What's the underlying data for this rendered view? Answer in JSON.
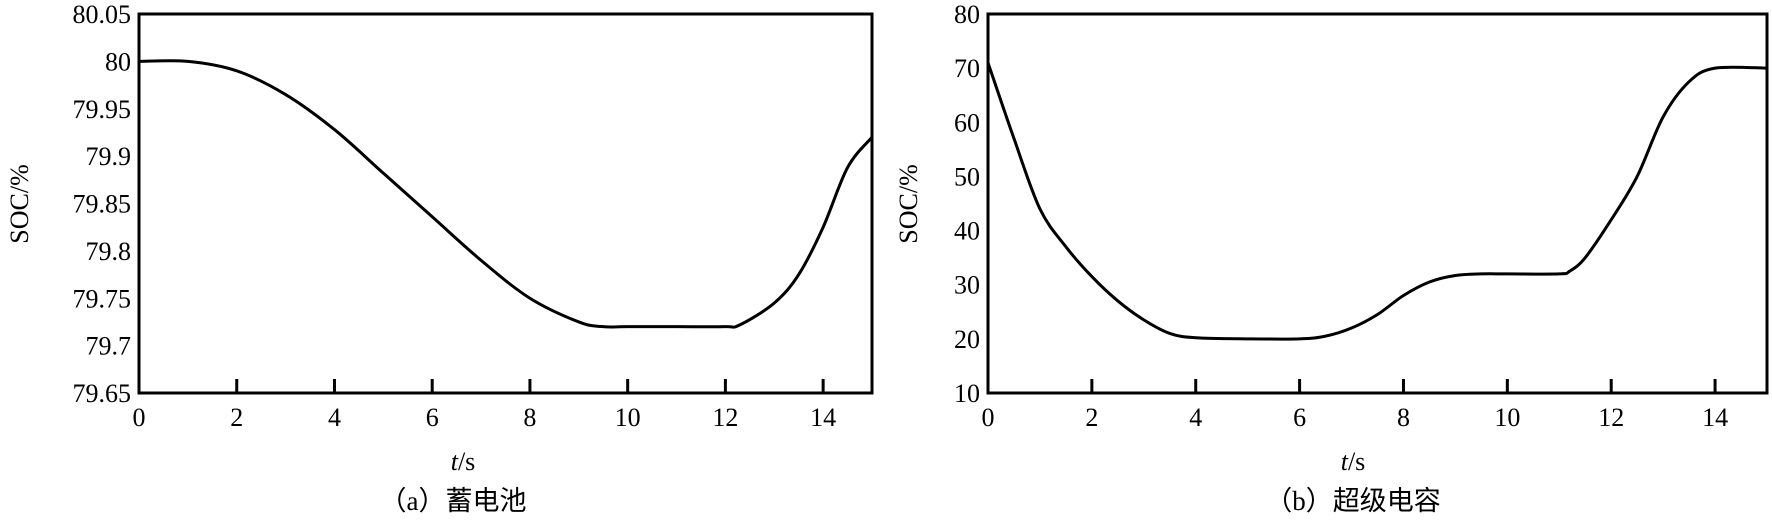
{
  "chart_data": [
    {
      "type": "line",
      "caption": "（a）蓄电池",
      "xlabel_var": "t",
      "xlabel_unit": "/s",
      "ylabel": "SOC/%",
      "xlim": [
        0,
        15
      ],
      "ylim": [
        79.65,
        80.05
      ],
      "x_ticks": [
        0,
        2,
        4,
        6,
        8,
        10,
        12,
        14
      ],
      "y_ticks": [
        79.65,
        79.7,
        79.75,
        79.8,
        79.85,
        79.9,
        79.95,
        80,
        80.05
      ],
      "x_tick_labels": [
        "0",
        "2",
        "4",
        "6",
        "8",
        "10",
        "12",
        "14"
      ],
      "y_tick_labels": [
        "79.65",
        "79.7",
        "79.75",
        "79.8",
        "79.85",
        "79.9",
        "79.95",
        "80",
        "80.05"
      ],
      "grid": false,
      "legend": "none",
      "series": [
        {
          "x": [
            0,
            1,
            2,
            3,
            4,
            5,
            6,
            7,
            8,
            9,
            9.5,
            10,
            11,
            12,
            12.3,
            13,
            13.5,
            14,
            14.5,
            15
          ],
          "y": [
            80.0,
            80.0,
            79.99,
            79.965,
            79.928,
            79.882,
            79.836,
            79.79,
            79.75,
            79.725,
            79.72,
            79.72,
            79.72,
            79.72,
            79.722,
            79.745,
            79.775,
            79.825,
            79.888,
            79.92
          ]
        }
      ]
    },
    {
      "type": "line",
      "caption": "（b）超级电容",
      "xlabel_var": "t",
      "xlabel_unit": "/s",
      "ylabel": "SOC/%",
      "xlim": [
        0,
        15
      ],
      "ylim": [
        10,
        80
      ],
      "x_ticks": [
        0,
        2,
        4,
        6,
        8,
        10,
        12,
        14
      ],
      "y_ticks": [
        10,
        20,
        30,
        40,
        50,
        60,
        70,
        80
      ],
      "x_tick_labels": [
        "0",
        "2",
        "4",
        "6",
        "8",
        "10",
        "12",
        "14"
      ],
      "y_tick_labels": [
        "10",
        "20",
        "30",
        "40",
        "50",
        "60",
        "70",
        "80"
      ],
      "grid": false,
      "legend": "none",
      "series": [
        {
          "x": [
            0,
            0.5,
            1,
            1.5,
            2,
            2.5,
            3,
            3.5,
            4,
            5,
            6,
            6.5,
            7,
            7.5,
            8,
            8.5,
            9,
            9.5,
            10,
            11,
            11.2,
            11.5,
            12,
            12.5,
            13,
            13.5,
            14,
            15
          ],
          "y": [
            71,
            57,
            44,
            37,
            31.5,
            27,
            23.5,
            21,
            20.2,
            20,
            20,
            20.5,
            22,
            24.5,
            28,
            30.5,
            31.7,
            32,
            32,
            32,
            32.5,
            35,
            42,
            50,
            61,
            67.5,
            70,
            70
          ]
        }
      ]
    }
  ]
}
